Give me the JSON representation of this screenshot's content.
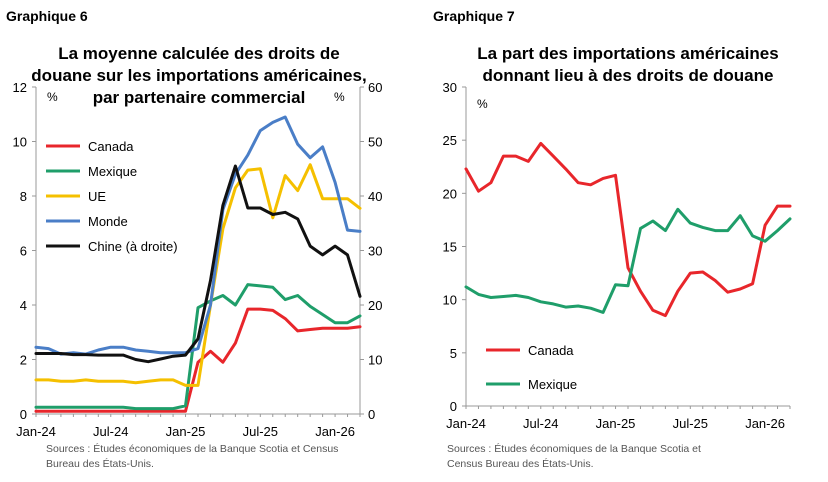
{
  "charts": [
    {
      "label": "Graphique 6",
      "title_lines": [
        "La moyenne calculée des droits de",
        "douane sur les importations américaines,",
        "par partenaire commercial"
      ],
      "left_unit": "%",
      "right_unit": "%",
      "source_lines": [
        "Sources : Études économiques de la Banque Scotia et Census",
        "Bureau des États-Unis."
      ]
    },
    {
      "label": "Graphique 7",
      "title_lines": [
        "La part des importations américaines",
        "donnant lieu à des droits de douane"
      ],
      "left_unit": "%",
      "source_lines": [
        "Sources : Études économiques de la Banque Scotia et",
        "Census Bureau des États-Unis."
      ]
    }
  ],
  "colors": {
    "Canada": "#e8262b",
    "Mexique": "#1f9e6a",
    "UE": "#f5c000",
    "Monde": "#4a7ec7",
    "Chine": "#111111",
    "axis": "#999999"
  },
  "chart_data": [
    {
      "type": "line",
      "title": "La moyenne calculée des droits de douane sur les importations américaines, par partenaire commercial",
      "x": [
        "Jan-24",
        "Feb-24",
        "Mar-24",
        "Apr-24",
        "May-24",
        "Jun-24",
        "Jul-24",
        "Aug-24",
        "Sep-24",
        "Oct-24",
        "Nov-24",
        "Dec-24",
        "Jan-25",
        "Feb-25",
        "Mar-25",
        "Apr-25",
        "May-25",
        "Jun-25",
        "Jul-25",
        "Aug-25",
        "Sep-25",
        "Oct-25",
        "Nov-25",
        "Dec-25",
        "Jan-26",
        "Feb-26",
        "Mar-26"
      ],
      "x_ticks": [
        "Jan-24",
        "Jul-24",
        "Jan-25",
        "Jul-25",
        "Jan-26"
      ],
      "ylim": [
        0,
        12
      ],
      "yticks": [
        0,
        2,
        4,
        6,
        8,
        10,
        12
      ],
      "y2lim": [
        0,
        60
      ],
      "y2ticks": [
        0,
        10,
        20,
        30,
        40,
        50,
        60
      ],
      "legend_position": "left",
      "series": [
        {
          "name": "Canada",
          "axis": "left",
          "values": [
            0.1,
            0.1,
            0.1,
            0.1,
            0.1,
            0.1,
            0.1,
            0.1,
            0.1,
            0.1,
            0.1,
            0.1,
            0.1,
            1.9,
            2.3,
            1.9,
            2.6,
            3.85,
            3.85,
            3.8,
            3.5,
            3.05,
            3.1,
            3.15,
            3.15,
            3.15,
            3.2
          ]
        },
        {
          "name": "Mexique",
          "axis": "left",
          "values": [
            0.25,
            0.25,
            0.25,
            0.25,
            0.25,
            0.25,
            0.25,
            0.25,
            0.2,
            0.2,
            0.2,
            0.2,
            0.3,
            3.9,
            4.15,
            4.35,
            4.0,
            4.75,
            4.7,
            4.65,
            4.2,
            4.35,
            3.95,
            3.65,
            3.35,
            3.35,
            3.6
          ]
        },
        {
          "name": "UE",
          "axis": "left",
          "values": [
            1.25,
            1.25,
            1.2,
            1.2,
            1.25,
            1.2,
            1.2,
            1.2,
            1.15,
            1.2,
            1.25,
            1.25,
            1.05,
            1.05,
            4.0,
            6.8,
            8.3,
            8.95,
            9.0,
            7.2,
            8.75,
            8.2,
            9.15,
            7.9,
            7.9,
            7.9,
            7.55
          ]
        },
        {
          "name": "Monde",
          "axis": "left",
          "values": [
            2.45,
            2.4,
            2.2,
            2.25,
            2.2,
            2.35,
            2.45,
            2.45,
            2.35,
            2.3,
            2.25,
            2.25,
            2.25,
            2.4,
            4.0,
            7.5,
            8.8,
            9.5,
            10.4,
            10.7,
            10.9,
            9.9,
            9.4,
            9.8,
            8.5,
            6.75,
            6.7
          ]
        },
        {
          "name": "Chine (à droite)",
          "axis": "right",
          "values": [
            11.1,
            11.1,
            11.1,
            10.9,
            10.9,
            10.8,
            10.8,
            10.8,
            10.0,
            9.6,
            10.1,
            10.6,
            10.8,
            13.8,
            24.5,
            38.3,
            45.5,
            37.8,
            37.8,
            36.6,
            37.0,
            35.8,
            30.8,
            29.2,
            30.8,
            29.2,
            21.6
          ]
        }
      ]
    },
    {
      "type": "line",
      "title": "La part des importations américaines donnant lieu à des droits de douane",
      "x": [
        "Jan-24",
        "Feb-24",
        "Mar-24",
        "Apr-24",
        "May-24",
        "Jun-24",
        "Jul-24",
        "Aug-24",
        "Sep-24",
        "Oct-24",
        "Nov-24",
        "Dec-24",
        "Jan-25",
        "Feb-25",
        "Mar-25",
        "Apr-25",
        "May-25",
        "Jun-25",
        "Jul-25",
        "Aug-25",
        "Sep-25",
        "Oct-25",
        "Nov-25",
        "Dec-25",
        "Jan-26",
        "Feb-26",
        "Mar-26"
      ],
      "x_ticks": [
        "Jan-24",
        "Jul-24",
        "Jan-25",
        "Jul-25",
        "Jan-26"
      ],
      "ylim": [
        0,
        30
      ],
      "yticks": [
        0,
        5,
        10,
        15,
        20,
        25,
        30
      ],
      "legend_position": "bottom-left",
      "series": [
        {
          "name": "Canada",
          "values": [
            22.3,
            20.2,
            21.0,
            23.5,
            23.5,
            23.0,
            24.7,
            23.5,
            22.3,
            21.0,
            20.8,
            21.4,
            21.7,
            13.0,
            10.8,
            9.0,
            8.5,
            10.8,
            12.5,
            12.6,
            11.8,
            10.7,
            11.0,
            11.5,
            17.0,
            18.8,
            18.8
          ]
        },
        {
          "name": "Mexique",
          "values": [
            11.2,
            10.5,
            10.2,
            10.3,
            10.4,
            10.2,
            9.8,
            9.6,
            9.3,
            9.4,
            9.2,
            8.8,
            11.4,
            11.3,
            16.7,
            17.4,
            16.5,
            18.5,
            17.2,
            16.8,
            16.5,
            16.5,
            17.9,
            16.0,
            15.5,
            16.5,
            17.6
          ]
        }
      ]
    }
  ]
}
